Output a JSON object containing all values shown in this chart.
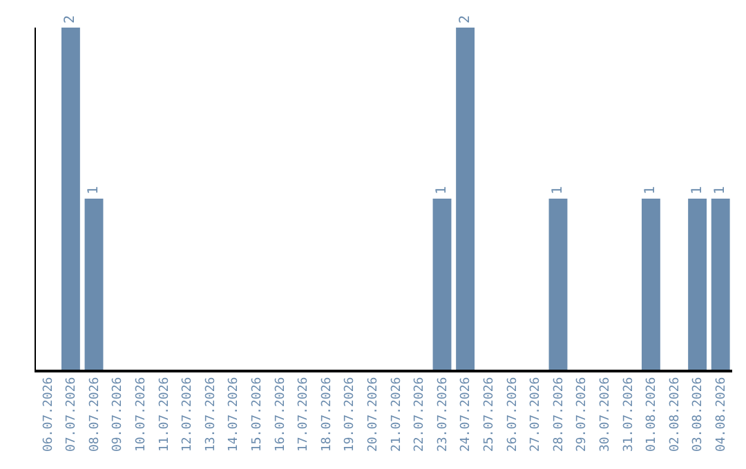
{
  "chart_data": {
    "type": "bar",
    "categories": [
      "06.07.2026",
      "07.07.2026",
      "08.07.2026",
      "09.07.2026",
      "10.07.2026",
      "11.07.2026",
      "12.07.2026",
      "13.07.2026",
      "14.07.2026",
      "15.07.2026",
      "16.07.2026",
      "17.07.2026",
      "18.07.2026",
      "19.07.2026",
      "20.07.2026",
      "21.07.2026",
      "22.07.2026",
      "23.07.2026",
      "24.07.2026",
      "25.07.2026",
      "26.07.2026",
      "27.07.2026",
      "28.07.2026",
      "29.07.2026",
      "30.07.2026",
      "31.07.2026",
      "01.08.2026",
      "02.08.2026",
      "03.08.2026",
      "04.08.2026"
    ],
    "values": [
      0,
      2,
      1,
      0,
      0,
      0,
      0,
      0,
      0,
      0,
      0,
      0,
      0,
      0,
      0,
      0,
      0,
      1,
      2,
      0,
      0,
      0,
      1,
      0,
      0,
      0,
      1,
      0,
      1,
      1
    ],
    "value_labels": [
      null,
      "2",
      "1",
      null,
      null,
      null,
      null,
      null,
      null,
      null,
      null,
      null,
      null,
      null,
      null,
      null,
      null,
      "1",
      "2",
      null,
      null,
      null,
      "1",
      null,
      null,
      null,
      "1",
      null,
      "1",
      "1"
    ],
    "color": "#6b8cae",
    "ylim": [
      0,
      2
    ],
    "tick_labels": "x",
    "legend": false
  }
}
